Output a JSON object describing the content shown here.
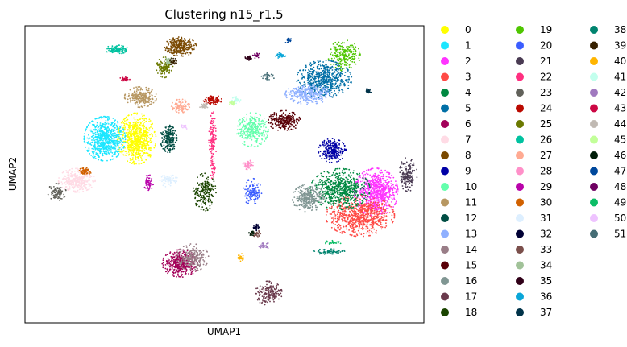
{
  "chart_data": {
    "type": "scatter",
    "title": "Clustering n15_r1.5",
    "xlabel": "UMAP1",
    "ylabel": "UMAP2",
    "xlim": [
      0,
      100
    ],
    "ylim": [
      0,
      100
    ],
    "grid": false,
    "ticks_visible": false,
    "legend_placement": "right (outside plot)",
    "legend_columns": 3,
    "series": [
      {
        "name": "0",
        "color": "#ffff00",
        "x": 28,
        "y": 62,
        "rx": 4.2,
        "ry": 7.5,
        "n": 700
      },
      {
        "name": "1",
        "color": "#1ce6ff",
        "x": 20,
        "y": 62,
        "rx": 4.5,
        "ry": 6.5,
        "n": 700
      },
      {
        "name": "2",
        "color": "#ff34ff",
        "x": 88,
        "y": 44,
        "rx": 4.8,
        "ry": 7.0,
        "n": 750
      },
      {
        "name": "3",
        "color": "#ff4a46",
        "x": 84,
        "y": 36,
        "rx": 7.5,
        "ry": 6.0,
        "n": 750
      },
      {
        "name": "4",
        "color": "#008941",
        "x": 79,
        "y": 45,
        "rx": 6.5,
        "ry": 6.0,
        "n": 650
      },
      {
        "name": "5",
        "color": "#006fa6",
        "x": 75,
        "y": 82,
        "rx": 6.0,
        "ry": 5.5,
        "n": 600
      },
      {
        "name": "6",
        "color": "#a30059",
        "x": 39,
        "y": 20,
        "rx": 4.0,
        "ry": 4.0,
        "n": 400
      },
      {
        "name": "7",
        "color": "#ffdbe5",
        "x": 13,
        "y": 48,
        "rx": 4.0,
        "ry": 3.5,
        "n": 350
      },
      {
        "name": "8",
        "color": "#7a4900",
        "x": 39,
        "y": 93,
        "rx": 3.5,
        "ry": 2.8,
        "n": 300
      },
      {
        "name": "9",
        "color": "#0000a6",
        "x": 77,
        "y": 58,
        "rx": 3.0,
        "ry": 3.5,
        "n": 250
      },
      {
        "name": "10",
        "color": "#63ffac",
        "x": 57,
        "y": 65,
        "rx": 3.5,
        "ry": 5.0,
        "n": 300
      },
      {
        "name": "11",
        "color": "#b79762",
        "x": 29,
        "y": 76,
        "rx": 3.5,
        "ry": 3.0,
        "n": 250
      },
      {
        "name": "12",
        "color": "#004d43",
        "x": 36,
        "y": 62,
        "rx": 1.8,
        "ry": 4.0,
        "n": 200
      },
      {
        "name": "13",
        "color": "#8fb0ff",
        "x": 71,
        "y": 77,
        "rx": 5.0,
        "ry": 3.0,
        "n": 300
      },
      {
        "name": "14",
        "color": "#997d87",
        "x": 42,
        "y": 22,
        "rx": 3.5,
        "ry": 4.0,
        "n": 250
      },
      {
        "name": "15",
        "color": "#5a0007",
        "x": 65,
        "y": 68,
        "rx": 3.5,
        "ry": 3.0,
        "n": 250
      },
      {
        "name": "16",
        "color": "#809693",
        "x": 71,
        "y": 42,
        "rx": 3.5,
        "ry": 4.0,
        "n": 300
      },
      {
        "name": "17",
        "color": "#6a3a4c",
        "x": 61,
        "y": 10,
        "rx": 3.0,
        "ry": 3.5,
        "n": 180
      },
      {
        "name": "18",
        "color": "#1b4400",
        "x": 45,
        "y": 44,
        "rx": 2.5,
        "ry": 5.5,
        "n": 200
      },
      {
        "name": "19",
        "color": "#4fc601",
        "x": 80,
        "y": 90,
        "rx": 3.5,
        "ry": 4.5,
        "n": 220
      },
      {
        "name": "20",
        "color": "#3b5dff",
        "x": 57,
        "y": 44,
        "rx": 2.0,
        "ry": 4.0,
        "n": 120
      },
      {
        "name": "21",
        "color": "#4a3b53",
        "x": 96,
        "y": 50,
        "rx": 2.0,
        "ry": 5.0,
        "n": 160
      },
      {
        "name": "22",
        "color": "#ff2f80",
        "x": 47,
        "y": 60,
        "rx": 0.8,
        "ry": 10.0,
        "n": 150
      },
      {
        "name": "23",
        "color": "#61615a",
        "x": 8,
        "y": 44,
        "rx": 2.0,
        "ry": 2.5,
        "n": 100
      },
      {
        "name": "24",
        "color": "#ba0900",
        "x": 47,
        "y": 75,
        "rx": 2.0,
        "ry": 1.5,
        "n": 100
      },
      {
        "name": "25",
        "color": "#6b7900",
        "x": 35,
        "y": 86,
        "rx": 1.8,
        "ry": 3.0,
        "n": 120
      },
      {
        "name": "26",
        "color": "#00c2a0",
        "x": 23,
        "y": 92,
        "rx": 2.5,
        "ry": 1.3,
        "n": 110
      },
      {
        "name": "27",
        "color": "#ffaa92",
        "x": 39,
        "y": 73,
        "rx": 2.0,
        "ry": 2.0,
        "n": 100
      },
      {
        "name": "28",
        "color": "#ff90c9",
        "x": 56,
        "y": 53,
        "rx": 1.2,
        "ry": 1.5,
        "n": 60
      },
      {
        "name": "29",
        "color": "#b903aa",
        "x": 31,
        "y": 47,
        "rx": 1.0,
        "ry": 2.5,
        "n": 60
      },
      {
        "name": "30",
        "color": "#d16100",
        "x": 15,
        "y": 51,
        "rx": 1.5,
        "ry": 1.0,
        "n": 60
      },
      {
        "name": "31",
        "color": "#ddefff",
        "x": 36,
        "y": 48,
        "rx": 2.0,
        "ry": 2.0,
        "n": 70
      },
      {
        "name": "32",
        "color": "#000035",
        "x": 58,
        "y": 32,
        "rx": 0.8,
        "ry": 1.0,
        "n": 30
      },
      {
        "name": "33",
        "color": "#7b4f4b",
        "x": 58,
        "y": 30,
        "rx": 1.0,
        "ry": 1.0,
        "n": 30
      },
      {
        "name": "34",
        "color": "#a1c299",
        "x": 36,
        "y": 88,
        "rx": 1.0,
        "ry": 1.2,
        "n": 40
      },
      {
        "name": "35",
        "color": "#300018",
        "x": 56,
        "y": 89,
        "rx": 0.8,
        "ry": 0.8,
        "n": 30
      },
      {
        "name": "36",
        "color": "#0aa6d8",
        "x": 64,
        "y": 90,
        "rx": 1.2,
        "ry": 0.8,
        "n": 40
      },
      {
        "name": "37",
        "color": "#013349",
        "x": 86,
        "y": 78,
        "rx": 0.8,
        "ry": 0.8,
        "n": 30
      },
      {
        "name": "38",
        "color": "#00846f",
        "x": 76,
        "y": 24,
        "rx": 4.0,
        "ry": 0.8,
        "n": 80
      },
      {
        "name": "39",
        "color": "#372101",
        "x": 37,
        "y": 88,
        "rx": 1.0,
        "ry": 1.0,
        "n": 30
      },
      {
        "name": "40",
        "color": "#ffb500",
        "x": 54,
        "y": 22,
        "rx": 0.8,
        "ry": 1.2,
        "n": 30
      },
      {
        "name": "41",
        "color": "#c2ffed",
        "x": 53,
        "y": 75,
        "rx": 1.0,
        "ry": 1.0,
        "n": 30
      },
      {
        "name": "42",
        "color": "#a079bf",
        "x": 60,
        "y": 26,
        "rx": 1.2,
        "ry": 1.0,
        "n": 30
      },
      {
        "name": "43",
        "color": "#cc0744",
        "x": 25,
        "y": 82,
        "rx": 1.2,
        "ry": 0.6,
        "n": 30
      },
      {
        "name": "44",
        "color": "#c0b9b2",
        "x": 45,
        "y": 73,
        "rx": 1.2,
        "ry": 1.0,
        "n": 30
      },
      {
        "name": "45",
        "color": "#c2ff99",
        "x": 52,
        "y": 74,
        "rx": 0.8,
        "ry": 0.8,
        "n": 20
      },
      {
        "name": "46",
        "color": "#001e09",
        "x": 57,
        "y": 30,
        "rx": 0.8,
        "ry": 0.8,
        "n": 20
      },
      {
        "name": "47",
        "color": "#00489c",
        "x": 66,
        "y": 95,
        "rx": 0.8,
        "ry": 0.8,
        "n": 20
      },
      {
        "name": "48",
        "color": "#6f0062",
        "x": 58,
        "y": 90,
        "rx": 0.8,
        "ry": 0.8,
        "n": 20
      },
      {
        "name": "49",
        "color": "#0cbd66",
        "x": 77,
        "y": 27,
        "rx": 2.0,
        "ry": 0.6,
        "n": 30
      },
      {
        "name": "50",
        "color": "#eec3ff",
        "x": 40,
        "y": 66,
        "rx": 0.8,
        "ry": 0.8,
        "n": 20
      },
      {
        "name": "51",
        "color": "#456d75",
        "x": 61,
        "y": 83,
        "rx": 1.5,
        "ry": 1.0,
        "n": 40
      }
    ]
  }
}
